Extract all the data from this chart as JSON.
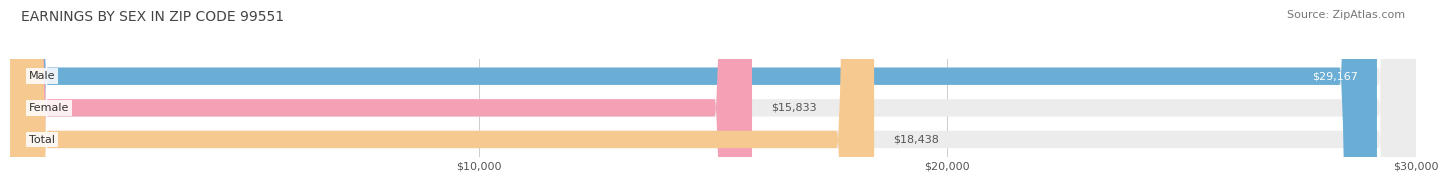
{
  "title": "EARNINGS BY SEX IN ZIP CODE 99551",
  "source": "Source: ZipAtlas.com",
  "categories": [
    "Male",
    "Female",
    "Total"
  ],
  "values": [
    29167,
    15833,
    18438
  ],
  "labels": [
    "$29,167",
    "$15,833",
    "$18,438"
  ],
  "bar_colors": [
    "#6aaed6",
    "#f4a0b5",
    "#f5c990"
  ],
  "bar_bg_color": "#ececec",
  "xmax": 30000,
  "xticks": [
    10000,
    20000,
    30000
  ],
  "xtick_labels": [
    "$10,000",
    "$20,000",
    "$30,000"
  ],
  "title_color": "#444444",
  "title_fontsize": 10,
  "source_fontsize": 8,
  "bar_label_fontsize": 8,
  "category_fontsize": 8,
  "tick_fontsize": 8,
  "background_color": "#ffffff",
  "bar_height": 0.55
}
